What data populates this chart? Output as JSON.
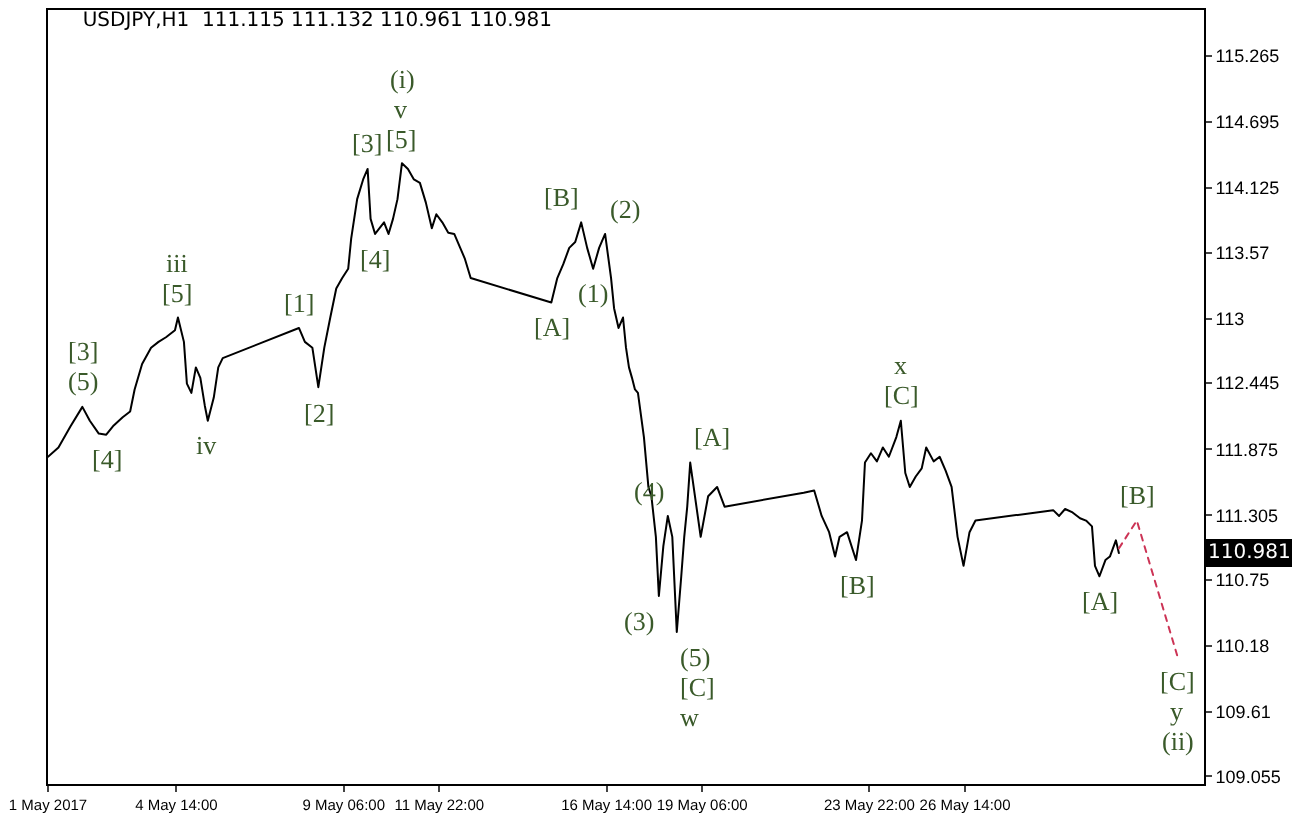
{
  "chart_data": {
    "type": "line",
    "title": "USDJPY,H1  111.115 111.132 110.961 110.981",
    "xlim": [
      "2017-05-01T00:00",
      "2017-06-02T06:00"
    ],
    "xticks": [
      {
        "value": "2017-05-01T00:00",
        "label": "1 May 2017"
      },
      {
        "value": "2017-05-04T14:00",
        "label": "4 May 14:00"
      },
      {
        "value": "2017-05-09T06:00",
        "label": "9 May 06:00"
      },
      {
        "value": "2017-05-11T22:00",
        "label": "11 May 22:00"
      },
      {
        "value": "2017-05-16T14:00",
        "label": "16 May 14:00"
      },
      {
        "value": "2017-05-19T06:00",
        "label": "19 May 06:00"
      },
      {
        "value": "2017-05-23T22:00",
        "label": "23 May 22:00"
      },
      {
        "value": "2017-05-26T14:00",
        "label": "26 May 14:00"
      }
    ],
    "ylim": [
      108.99,
      115.66
    ],
    "yticks": [
      109.055,
      109.61,
      110.18,
      110.75,
      111.305,
      111.875,
      112.445,
      113.0,
      113.57,
      114.125,
      114.695,
      115.265
    ],
    "grid": false,
    "marker": "none",
    "series": [
      {
        "color": "#000000",
        "line_style": "solid",
        "x": [
          "2017-05-01T00:00",
          "2017-05-01T07:00",
          "2017-05-01T15:00",
          "2017-05-01T23:00",
          "2017-05-02T04:00",
          "2017-05-02T10:00",
          "2017-05-02T15:00",
          "2017-05-02T20:00",
          "2017-05-03T02:00",
          "2017-05-03T07:00",
          "2017-05-03T10:00",
          "2017-05-03T15:00",
          "2017-05-03T21:00",
          "2017-05-04T02:00",
          "2017-05-04T07:00",
          "2017-05-04T13:00",
          "2017-05-04T15:00",
          "2017-05-04T19:00",
          "2017-05-04T21:00",
          "2017-05-05T00:00",
          "2017-05-05T03:00",
          "2017-05-05T06:00",
          "2017-05-05T09:00",
          "2017-05-05T11:00",
          "2017-05-05T15:00",
          "2017-05-05T18:00",
          "2017-05-05T21:00",
          "2017-05-08T00:00",
          "2017-05-08T04:00",
          "2017-05-08T09:00",
          "2017-05-08T13:00",
          "2017-05-08T17:00",
          "2017-05-08T21:00",
          "2017-05-09T01:00",
          "2017-05-09T05:00",
          "2017-05-09T09:00",
          "2017-05-09T11:00",
          "2017-05-09T15:00",
          "2017-05-09T19:00",
          "2017-05-09T22:00",
          "2017-05-10T00:00",
          "2017-05-10T03:00",
          "2017-05-10T06:00",
          "2017-05-10T09:00",
          "2017-05-10T12:00",
          "2017-05-10T15:00",
          "2017-05-10T18:00",
          "2017-05-10T21:00",
          "2017-05-11T01:00",
          "2017-05-11T05:00",
          "2017-05-11T09:00",
          "2017-05-11T13:00",
          "2017-05-11T17:00",
          "2017-05-11T20:00",
          "2017-05-12T00:00",
          "2017-05-12T04:00",
          "2017-05-12T08:00",
          "2017-05-12T12:00",
          "2017-05-12T15:00",
          "2017-05-12T19:00",
          "2017-05-15T01:00",
          "2017-05-15T05:00",
          "2017-05-15T09:00",
          "2017-05-15T13:00",
          "2017-05-15T17:00",
          "2017-05-15T21:00",
          "2017-05-16T01:00",
          "2017-05-16T05:00",
          "2017-05-16T09:00",
          "2017-05-16T13:00",
          "2017-05-16T17:00",
          "2017-05-16T19:00",
          "2017-05-16T22:00",
          "2017-05-17T01:00",
          "2017-05-17T03:00",
          "2017-05-17T05:00",
          "2017-05-17T07:00",
          "2017-05-17T09:00",
          "2017-05-17T11:00",
          "2017-05-17T15:00",
          "2017-05-17T18:00",
          "2017-05-17T20:00",
          "2017-05-17T23:00",
          "2017-05-18T01:00",
          "2017-05-18T04:00",
          "2017-05-18T07:00",
          "2017-05-18T10:00",
          "2017-05-18T13:00",
          "2017-05-18T16:00",
          "2017-05-18T18:00",
          "2017-05-18T20:00",
          "2017-05-18T22:00",
          "2017-05-19T05:00",
          "2017-05-19T10:00",
          "2017-05-19T16:00",
          "2017-05-19T21:00",
          "2017-05-22T02:00",
          "2017-05-22T09:00",
          "2017-05-22T14:00",
          "2017-05-22T19:00",
          "2017-05-22T23:00",
          "2017-05-23T02:00",
          "2017-05-23T07:00",
          "2017-05-23T13:00",
          "2017-05-23T17:00",
          "2017-05-23T19:00",
          "2017-05-23T23:00",
          "2017-05-24T03:00",
          "2017-05-24T07:00",
          "2017-05-24T11:00",
          "2017-05-24T16:00",
          "2017-05-24T19:00",
          "2017-05-24T22:00",
          "2017-05-25T01:00",
          "2017-05-25T05:00",
          "2017-05-25T09:00",
          "2017-05-25T12:00",
          "2017-05-25T17:00",
          "2017-05-25T21:00",
          "2017-05-26T01:00",
          "2017-05-26T05:00",
          "2017-05-26T09:00",
          "2017-05-26T13:00",
          "2017-05-26T17:00",
          "2017-05-26T21:00",
          "2017-05-29T01:00",
          "2017-05-29T05:00",
          "2017-05-29T09:00",
          "2017-05-29T14:00",
          "2017-05-29T19:00",
          "2017-05-29T23:00",
          "2017-05-30T03:00",
          "2017-05-30T05:00",
          "2017-05-30T08:00",
          "2017-05-30T12:00",
          "2017-05-30T15:00",
          "2017-05-30T19:00",
          "2017-05-30T21:00"
        ],
        "values": [
          111.81,
          111.89,
          112.07,
          112.24,
          112.12,
          112.01,
          112.0,
          112.08,
          112.15,
          112.2,
          112.39,
          112.61,
          112.75,
          112.8,
          112.84,
          112.9,
          113.01,
          112.8,
          112.44,
          112.36,
          112.58,
          112.49,
          112.25,
          112.12,
          112.32,
          112.58,
          112.66,
          112.92,
          112.8,
          112.75,
          112.41,
          112.75,
          113.01,
          113.26,
          113.35,
          113.43,
          113.69,
          114.03,
          114.2,
          114.29,
          113.86,
          113.73,
          113.78,
          113.83,
          113.73,
          113.86,
          114.03,
          114.34,
          114.29,
          114.2,
          114.17,
          114.0,
          113.78,
          113.9,
          113.83,
          113.74,
          113.73,
          113.61,
          113.52,
          113.35,
          113.14,
          113.35,
          113.47,
          113.61,
          113.66,
          113.83,
          113.61,
          113.43,
          113.61,
          113.73,
          113.35,
          113.09,
          112.92,
          113.01,
          112.75,
          112.58,
          112.49,
          112.39,
          112.36,
          111.98,
          111.55,
          111.47,
          111.12,
          110.61,
          111.04,
          111.3,
          111.12,
          110.3,
          110.78,
          111.12,
          111.38,
          111.76,
          111.12,
          111.47,
          111.55,
          111.38,
          111.5,
          111.52,
          111.3,
          111.16,
          110.95,
          111.12,
          111.16,
          110.92,
          111.26,
          111.76,
          111.84,
          111.77,
          111.89,
          111.81,
          111.98,
          112.12,
          111.67,
          111.55,
          111.64,
          111.71,
          111.89,
          111.77,
          111.81,
          111.69,
          111.55,
          111.12,
          110.87,
          111.16,
          111.26,
          111.35,
          111.3,
          111.36,
          111.33,
          111.28,
          111.26,
          111.21,
          110.87,
          110.78,
          110.92,
          110.95,
          111.09,
          110.98
        ]
      },
      {
        "color": "#cc3355",
        "line_style": "dotted",
        "x": [
          "2017-05-30T21:00",
          "2017-05-31T09:00",
          "2017-06-01T12:00"
        ],
        "values": [
          111.02,
          111.26,
          110.1
        ]
      }
    ],
    "annotations": [
      {
        "text": "[5]",
        "x": "2017-05-10T21:00",
        "y": 114.34
      },
      {
        "text": "v",
        "x": "2017-05-10T21:00",
        "y": 114.34
      },
      {
        "text": "(i)",
        "x": "2017-05-10T21:00",
        "y": 114.34
      },
      {
        "text": "[3]",
        "x": "2017-05-09T22:00",
        "y": 114.29
      },
      {
        "text": "[4]",
        "x": "2017-05-10T03:00",
        "y": 113.73
      },
      {
        "text": "[B]",
        "x": "2017-05-15T21:00",
        "y": 113.83
      },
      {
        "text": "(2)",
        "x": "2017-05-16T13:00",
        "y": 113.73
      },
      {
        "text": "[A]",
        "x": "2017-05-15T01:00",
        "y": 113.14
      },
      {
        "text": "(1)",
        "x": "2017-05-16T05:00",
        "y": 113.43
      },
      {
        "text": "[5]",
        "x": "2017-05-04T15:00",
        "y": 113.01
      },
      {
        "text": "iii",
        "x": "2017-05-04T15:00",
        "y": 113.01
      },
      {
        "text": "[1]",
        "x": "2017-05-08T00:00",
        "y": 112.92
      },
      {
        "text": "[2]",
        "x": "2017-05-08T13:00",
        "y": 112.41
      },
      {
        "text": "(5)",
        "x": "2017-05-01T23:00",
        "y": 112.24
      },
      {
        "text": "[3]",
        "x": "2017-05-01T23:00",
        "y": 112.24
      },
      {
        "text": "[4]",
        "x": "2017-05-02T15:00",
        "y": 112.0
      },
      {
        "text": "iv",
        "x": "2017-05-05T11:00",
        "y": 112.12
      },
      {
        "text": "[A]",
        "x": "2017-05-18T22:00",
        "y": 111.76
      },
      {
        "text": "(4)",
        "x": "2017-05-18T07:00",
        "y": 111.3
      },
      {
        "text": "(3)",
        "x": "2017-05-18T01:00",
        "y": 110.61
      },
      {
        "text": "(5)",
        "x": "2017-05-18T13:00",
        "y": 110.3
      },
      {
        "text": "[C]",
        "x": "2017-05-18T13:00",
        "y": 110.3
      },
      {
        "text": "w",
        "x": "2017-05-18T13:00",
        "y": 110.3
      },
      {
        "text": "[C]",
        "x": "2017-05-24T19:00",
        "y": 112.12
      },
      {
        "text": "x",
        "x": "2017-05-24T19:00",
        "y": 112.12
      },
      {
        "text": "[B]",
        "x": "2017-05-23T13:00",
        "y": 110.92
      },
      {
        "text": "[A]",
        "x": "2017-05-30T08:00",
        "y": 110.78
      },
      {
        "text": "[B]",
        "x": "2017-05-31T09:00",
        "y": 111.26
      },
      {
        "text": "[C]",
        "x": "2017-06-01T12:00",
        "y": 110.1
      },
      {
        "text": "y",
        "x": "2017-06-01T12:00",
        "y": 110.1
      },
      {
        "text": "(ii)",
        "x": "2017-06-01T12:00",
        "y": 110.1
      },
      {
        "text": "110.981",
        "y": 110.981
      }
    ]
  }
}
